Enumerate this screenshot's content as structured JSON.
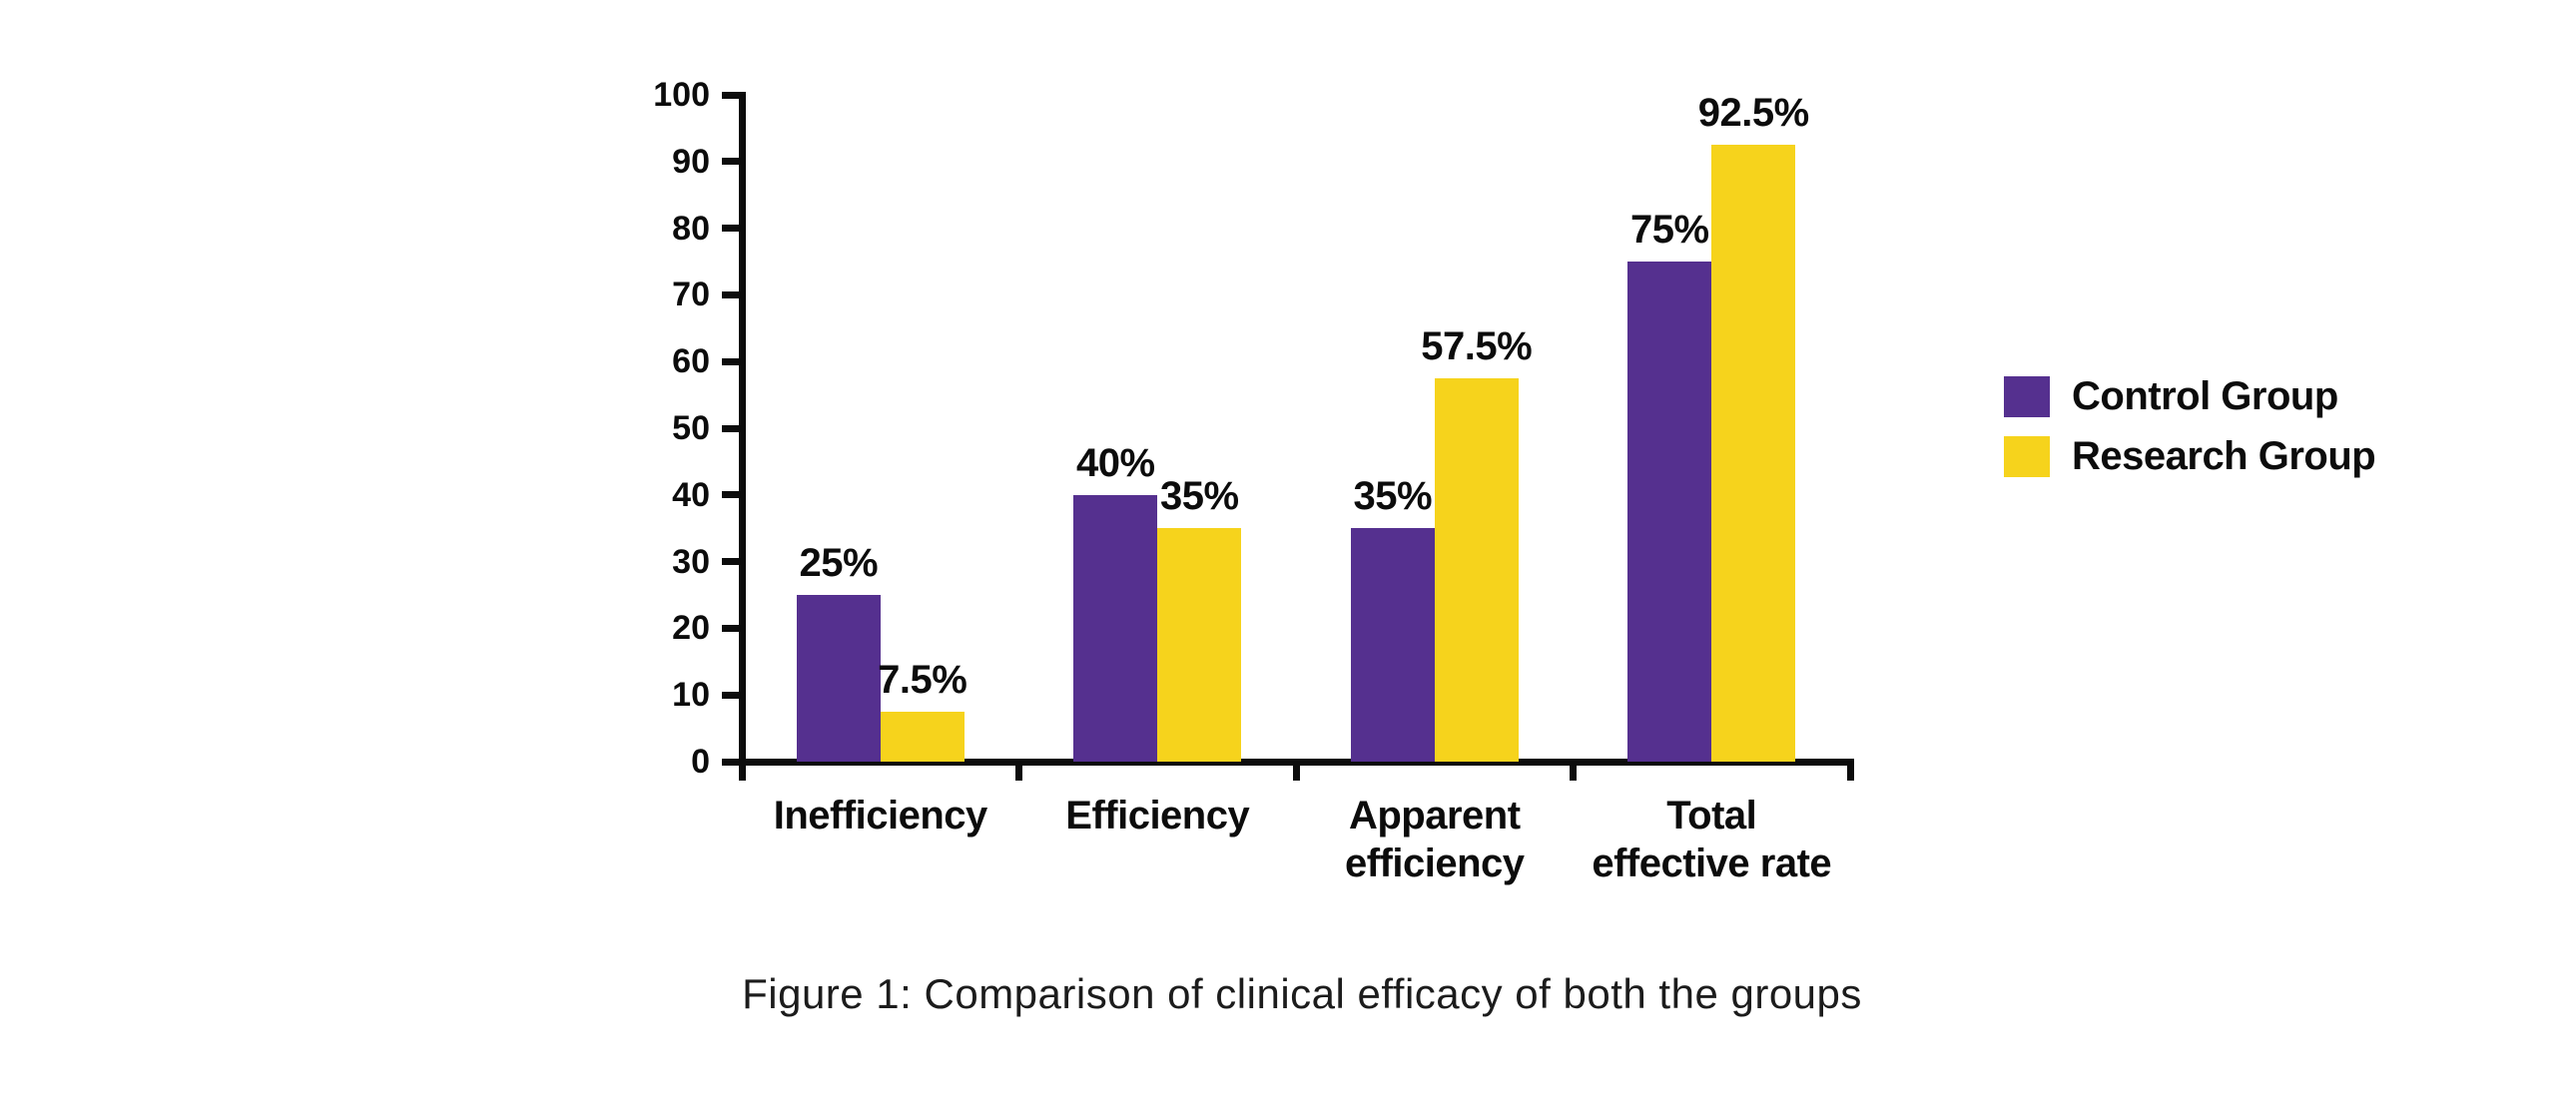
{
  "caption": {
    "text": "Figure 1: Comparison of clinical efficacy of both the groups"
  },
  "chart_data": {
    "type": "bar",
    "title": "",
    "xlabel": "",
    "ylabel": "",
    "categories": [
      "Inefficiency",
      "Efficiency",
      "Apparent efficiency",
      "Total effective rate"
    ],
    "category_display": [
      "Inefficiency",
      "Efficiency",
      "Apparent\nefficiency",
      "Total\neffective rate"
    ],
    "series": [
      {
        "name": "Control Group",
        "color": "#55308f",
        "values": [
          25,
          40,
          35,
          75
        ],
        "value_labels": [
          "25%",
          "40%",
          "35%",
          "75%"
        ]
      },
      {
        "name": "Research Group",
        "color": "#f6d31c",
        "values": [
          7.5,
          35,
          57.5,
          92.5
        ],
        "value_labels": [
          "7.5%",
          "35%",
          "57.5%",
          "92.5%"
        ]
      }
    ],
    "ylim": [
      0,
      100
    ],
    "yticks": [
      0,
      10,
      20,
      30,
      40,
      50,
      60,
      70,
      80,
      90,
      100
    ],
    "grid": false,
    "legend_position": "right",
    "axis_color": "#0c0c0c",
    "text_color": "#0c0c0c"
  }
}
